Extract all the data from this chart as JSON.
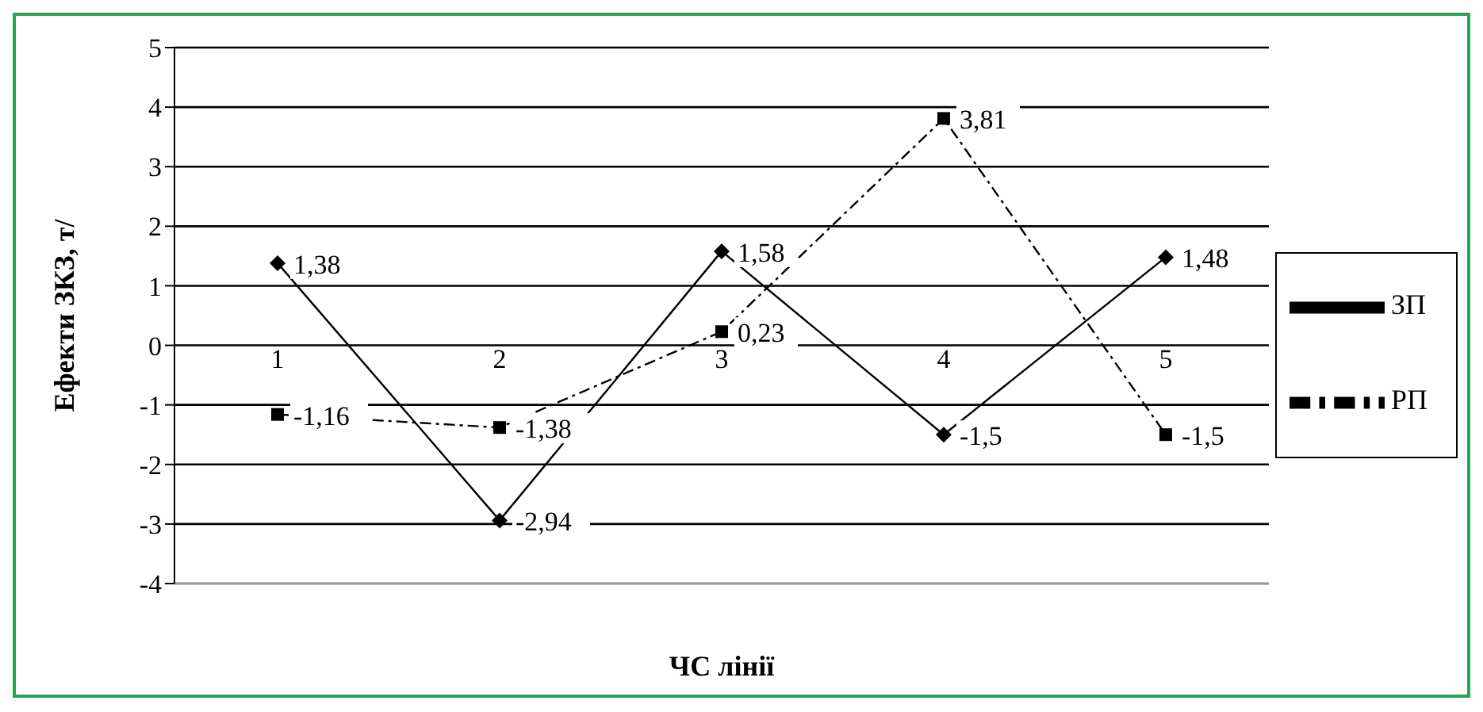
{
  "chart_data": {
    "type": "line",
    "xlabel": "ЧС лінії",
    "ylabel": "Ефекти ЗКЗ, т/",
    "categories": [
      "1",
      "2",
      "3",
      "4",
      "5"
    ],
    "series": [
      {
        "name": "ЗП",
        "color": "#000000",
        "values": [
          1.38,
          -2.94,
          1.58,
          -1.5,
          1.48
        ],
        "marker": "diamond",
        "line_style": "solid",
        "value_labels": [
          "1,38",
          "-2,94",
          "1,58",
          "-1,5",
          "1,48"
        ]
      },
      {
        "name": "РП",
        "color": "#000000",
        "values": [
          -1.16,
          -1.38,
          0.23,
          3.81,
          -1.5
        ],
        "marker": "square",
        "line_style": "dashed",
        "value_labels": [
          "-1,16",
          "-1,38",
          "0,23",
          "3,81",
          "-1,5"
        ]
      }
    ],
    "ylim": [
      -4,
      5
    ],
    "yticks": [
      -4,
      -3,
      -2,
      -1,
      0,
      1,
      2,
      3,
      4,
      5
    ],
    "grid": "y",
    "legend": "right"
  }
}
